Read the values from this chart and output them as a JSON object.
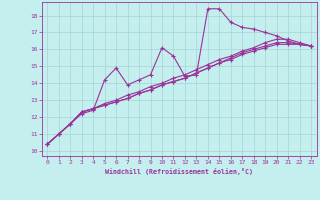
{
  "xlabel": "Windchill (Refroidissement éolien,°C)",
  "background_color": "#c5eeee",
  "grid_color": "#aad8d8",
  "line_color": "#993399",
  "xlim": [
    -0.5,
    23.5
  ],
  "ylim": [
    9.7,
    18.8
  ],
  "xticks": [
    0,
    1,
    2,
    3,
    4,
    5,
    6,
    7,
    8,
    9,
    10,
    11,
    12,
    13,
    14,
    15,
    16,
    17,
    18,
    19,
    20,
    21,
    22,
    23
  ],
  "yticks": [
    10,
    11,
    12,
    13,
    14,
    15,
    16,
    17,
    18
  ],
  "xdata": [
    0,
    1,
    2,
    3,
    4,
    5,
    6,
    7,
    8,
    9,
    10,
    11,
    12,
    13,
    14,
    15,
    16,
    17,
    18,
    19,
    20,
    21,
    22,
    23
  ],
  "series": [
    [
      10.4,
      11.0,
      11.6,
      12.2,
      12.4,
      14.2,
      14.9,
      13.9,
      14.2,
      14.5,
      16.1,
      15.6,
      14.4,
      14.5,
      18.4,
      18.4,
      17.6,
      17.3,
      17.2,
      17.0,
      16.8,
      16.5,
      16.3,
      16.2
    ],
    [
      10.4,
      11.0,
      11.6,
      12.3,
      12.5,
      12.7,
      12.9,
      13.1,
      13.4,
      13.6,
      13.9,
      14.1,
      14.3,
      14.6,
      14.9,
      15.2,
      15.4,
      15.7,
      15.9,
      16.1,
      16.3,
      16.3,
      16.3,
      16.2
    ],
    [
      10.4,
      11.0,
      11.6,
      12.3,
      12.5,
      12.7,
      12.9,
      13.1,
      13.4,
      13.6,
      13.9,
      14.1,
      14.3,
      14.6,
      14.9,
      15.2,
      15.5,
      15.8,
      16.0,
      16.2,
      16.4,
      16.4,
      16.3,
      16.2
    ],
    [
      10.4,
      11.0,
      11.6,
      12.3,
      12.5,
      12.8,
      13.0,
      13.3,
      13.5,
      13.8,
      14.0,
      14.3,
      14.5,
      14.8,
      15.1,
      15.4,
      15.6,
      15.9,
      16.1,
      16.4,
      16.6,
      16.6,
      16.4,
      16.2
    ]
  ]
}
